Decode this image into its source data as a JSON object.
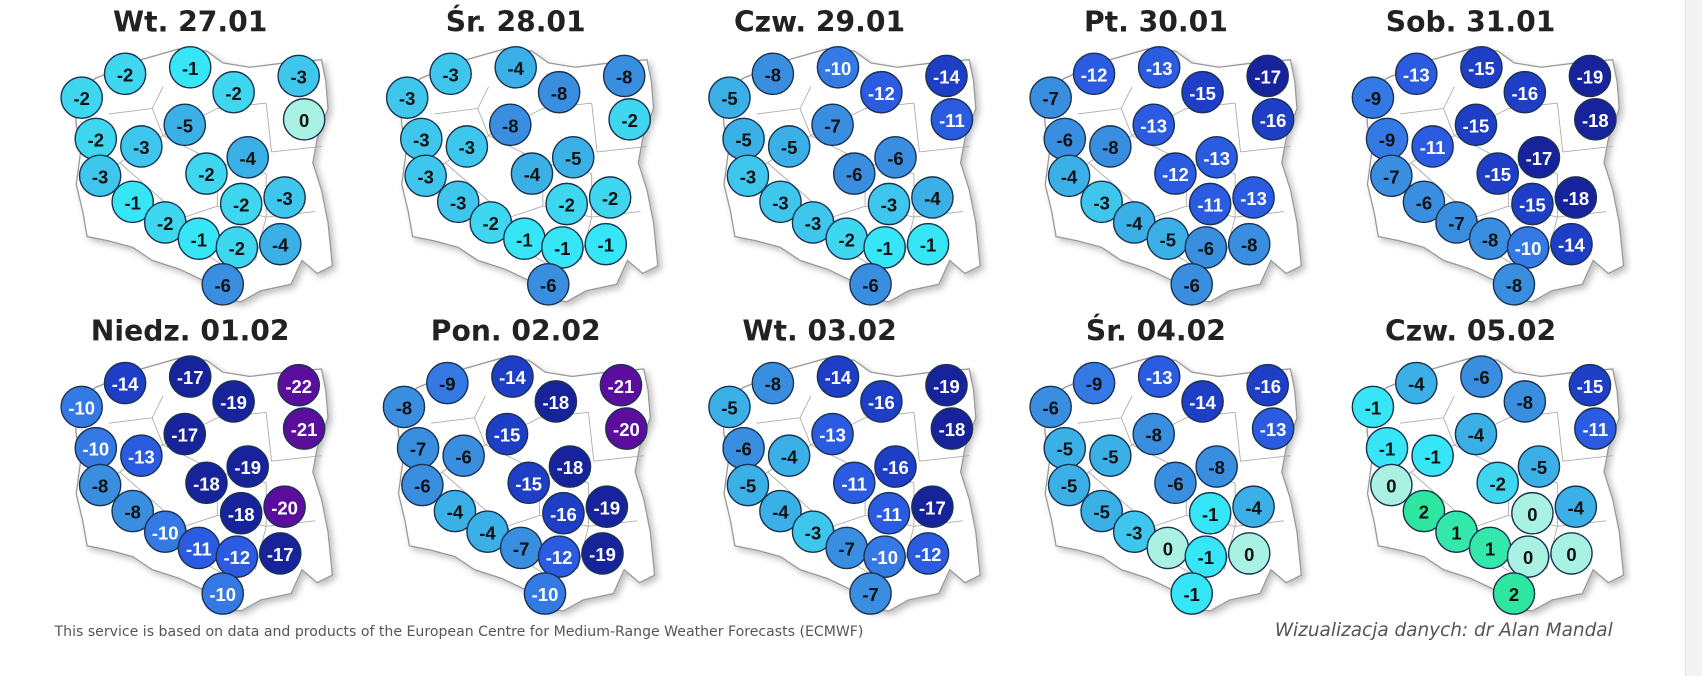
{
  "maps": [
    {
      "title": "Wt. 27.01",
      "values": [
        -2,
        -2,
        -1,
        -2,
        -3,
        0,
        -5,
        -2,
        -3,
        -4,
        -3,
        -2,
        -1,
        -3,
        -2,
        -2,
        -1,
        -2,
        -4,
        -6
      ]
    },
    {
      "title": "Śr. 28.01",
      "values": [
        -3,
        -3,
        -4,
        -8,
        -8,
        -2,
        -8,
        -3,
        -3,
        -5,
        -3,
        -4,
        -3,
        -2,
        -2,
        -2,
        -1,
        -1,
        -1,
        -6
      ]
    },
    {
      "title": "Czw. 29.01",
      "values": [
        -5,
        -8,
        -10,
        -12,
        -14,
        -11,
        -7,
        -5,
        -5,
        -6,
        -3,
        -6,
        -3,
        -4,
        -3,
        -3,
        -2,
        -1,
        -1,
        -6
      ]
    },
    {
      "title": "Pt. 30.01",
      "values": [
        -7,
        -12,
        -13,
        -15,
        -17,
        -16,
        -13,
        -6,
        -8,
        -13,
        -4,
        -12,
        -3,
        -13,
        -11,
        -4,
        -5,
        -6,
        -8,
        -6
      ]
    },
    {
      "title": "Sob. 31.01",
      "values": [
        -9,
        -13,
        -15,
        -16,
        -19,
        -18,
        -15,
        -9,
        -11,
        -17,
        -7,
        -15,
        -6,
        -18,
        -15,
        -7,
        -8,
        -10,
        -14,
        -8
      ]
    },
    {
      "title": "Niedz. 01.02",
      "values": [
        -10,
        -14,
        -17,
        -19,
        -22,
        -21,
        -17,
        -10,
        -13,
        -19,
        -8,
        -18,
        -8,
        -20,
        -18,
        -10,
        -11,
        -12,
        -17,
        -10
      ]
    },
    {
      "title": "Pon. 02.02",
      "values": [
        -8,
        -9,
        -14,
        -18,
        -21,
        -20,
        -15,
        -7,
        -6,
        -18,
        -6,
        -15,
        -4,
        -19,
        -16,
        -4,
        -7,
        -12,
        -19,
        -10
      ]
    },
    {
      "title": "Wt. 03.02",
      "values": [
        -5,
        -8,
        -14,
        -16,
        -19,
        -18,
        -13,
        -6,
        -4,
        -16,
        -5,
        -11,
        -4,
        -17,
        -11,
        -3,
        -7,
        -10,
        -12,
        -7
      ]
    },
    {
      "title": "Śr. 04.02",
      "values": [
        -6,
        -9,
        -13,
        -14,
        -16,
        -13,
        -8,
        -5,
        -5,
        -8,
        -5,
        -6,
        -5,
        -4,
        -1,
        -3,
        0,
        -1,
        0,
        -1
      ]
    },
    {
      "title": "Czw. 05.02",
      "values": [
        -1,
        -4,
        -6,
        -8,
        -15,
        -11,
        -4,
        -1,
        -1,
        -5,
        0,
        -2,
        2,
        -4,
        0,
        1,
        1,
        0,
        0,
        2
      ]
    }
  ],
  "color_scale": [
    {
      "min": 2,
      "color": "#2fe6a0"
    },
    {
      "min": 1,
      "color": "#34e8ac"
    },
    {
      "min": 0,
      "color": "#a9f2e3"
    },
    {
      "min": -1,
      "color": "#36e6f6"
    },
    {
      "min": -2,
      "color": "#3fd6f0"
    },
    {
      "min": -3,
      "color": "#3fc6ec"
    },
    {
      "min": -5,
      "color": "#3bb0e6"
    },
    {
      "min": -8,
      "color": "#3a8ee0"
    },
    {
      "min": -10,
      "color": "#3479e4"
    },
    {
      "min": -13,
      "color": "#2a5be0"
    },
    {
      "min": -16,
      "color": "#1e3ec6"
    },
    {
      "min": -19,
      "color": "#17239a"
    },
    {
      "min": -99,
      "color": "#5b0d9e"
    }
  ],
  "footer": {
    "source": "This service is based on data and products of the European Centre for Medium-Range Weather Forecasts (ECMWF)",
    "credit": "Wizualizacja danych: dr Alan Mandal"
  }
}
